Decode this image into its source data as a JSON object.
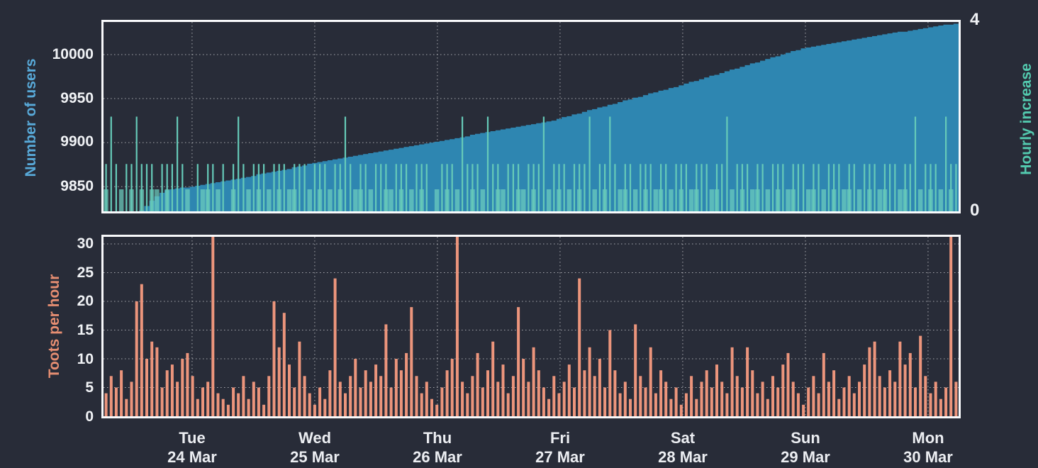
{
  "page": {
    "background": "#282c38",
    "border_color": "#f8f9fb",
    "grid_color": "rgba(255,255,255,0.6)"
  },
  "chart1": {
    "ylabel": "Number of users",
    "ylabel_color": "#58a9d8",
    "ylabel_right": "Hourly increase",
    "ylabel_right_color": "#53c9ae",
    "yticks": [
      "10000",
      "9950",
      "9900",
      "9850"
    ],
    "yticks_right": [
      "4",
      "0"
    ]
  },
  "chart2": {
    "ylabel": "Toots per hour",
    "ylabel_color": "#e68e72",
    "yticks": [
      "30",
      "25",
      "20",
      "15",
      "10",
      "5",
      "0"
    ]
  },
  "xaxis": {
    "days": [
      {
        "day": "Tue",
        "date": "24 Mar"
      },
      {
        "day": "Wed",
        "date": "25 Mar"
      },
      {
        "day": "Thu",
        "date": "26 Mar"
      },
      {
        "day": "Fri",
        "date": "27 Mar"
      },
      {
        "day": "Sat",
        "date": "28 Mar"
      },
      {
        "day": "Sun",
        "date": "29 Mar"
      },
      {
        "day": "Mon",
        "date": "30 Mar"
      }
    ]
  },
  "chart_data": [
    {
      "type": "area",
      "title": "Number of users with hourly increase",
      "ylabel": "Number of users",
      "ylabel_right": "Hourly increase",
      "ylim_left": [
        9822,
        10037
      ],
      "yticks_left": [
        9850,
        9900,
        9950,
        10000
      ],
      "ylim_right": [
        0,
        4
      ],
      "yticks_right": [
        0,
        4
      ],
      "hours_total": 168,
      "day_start_hours": [
        17.4,
        41.5,
        65.6,
        89.7,
        113.8,
        137.9,
        162.0
      ],
      "grid": true,
      "legend_position": "none",
      "series": [
        {
          "name": "users",
          "color": "#2e86b1",
          "values": [
            9820,
            9820,
            9821,
            9821,
            9821,
            9822,
            9822,
            9823,
            9828,
            9834,
            9839,
            9843,
            9846,
            9847,
            9848,
            9849,
            9849,
            9850,
            9851,
            9852,
            9853,
            9854,
            9855,
            9856,
            9857,
            9858,
            9859,
            9860,
            9861,
            9862,
            9864,
            9865,
            9866,
            9867,
            9868,
            9869,
            9870,
            9872,
            9873,
            9874,
            9876,
            9877,
            9878,
            9879,
            9880,
            9881,
            9882,
            9883,
            9884,
            9885,
            9886,
            9887,
            9888,
            9889,
            9890,
            9891,
            9892,
            9893,
            9894,
            9895,
            9896,
            9897,
            9898,
            9899,
            9900,
            9901,
            9902,
            9903,
            9904,
            9905,
            9906,
            9907,
            9909,
            9910,
            9911,
            9912,
            9913,
            9914,
            9915,
            9916,
            9917,
            9918,
            9919,
            9920,
            9921,
            9922,
            9923,
            9924,
            9925,
            9927,
            9929,
            9930,
            9932,
            9933,
            9935,
            9937,
            9938,
            9940,
            9941,
            9943,
            9944,
            9946,
            9948,
            9949,
            9951,
            9952,
            9954,
            9956,
            9957,
            9959,
            9960,
            9962,
            9963,
            9965,
            9967,
            9969,
            9970,
            9972,
            9974,
            9976,
            9977,
            9979,
            9981,
            9983,
            9984,
            9986,
            9988,
            9990,
            9991,
            9993,
            9995,
            9997,
            9998,
            10000,
            10002,
            10004,
            10005,
            10007,
            10008,
            10009,
            10010,
            10011,
            10012,
            10013,
            10014,
            10015,
            10016,
            10017,
            10018,
            10019,
            10020,
            10021,
            10022,
            10023,
            10024,
            10025,
            10026,
            10026,
            10027,
            10028,
            10029,
            10030,
            10031,
            10032,
            10033,
            10034,
            10034,
            10035,
            10036
          ]
        },
        {
          "name": "hourly_increase",
          "color": "#66cab8",
          "color_band": "rgba(109,206,191,0.72)",
          "values": [
            1.5,
            2,
            1,
            0.5,
            1,
            1.5,
            2,
            1.5,
            1,
            1.5,
            0.5,
            1,
            1.5,
            1,
            2,
            1,
            0.5,
            0,
            1,
            0.5,
            1.5,
            1,
            0.5,
            1,
            0,
            1.5,
            2,
            1,
            0.5,
            1,
            1.5,
            1,
            0.5,
            1,
            1.5,
            1,
            0.5,
            1.5,
            1,
            1,
            0.5,
            1,
            1.5,
            1,
            0.5,
            1,
            1.5,
            2,
            1,
            0.5,
            1.5,
            1,
            0.5,
            1,
            1,
            1.5,
            0.5,
            1,
            1.5,
            1,
            0.5,
            1,
            1.5,
            1,
            0,
            0.5,
            1,
            1.5,
            1,
            0.5,
            2,
            1,
            1.5,
            1,
            0.5,
            2,
            1,
            1.5,
            0.5,
            1,
            1,
            1.5,
            0.5,
            1,
            1.5,
            1,
            2,
            0.5,
            1,
            1.5,
            1,
            0.5,
            1,
            1.5,
            1,
            2,
            0.5,
            1,
            1.5,
            2,
            1,
            0.5,
            1.5,
            1,
            0.5,
            1,
            1.5,
            1,
            0.5,
            1.5,
            1,
            0.5,
            1,
            1.5,
            1,
            0.5,
            1.5,
            1,
            1,
            0.5,
            1.5,
            1,
            2,
            0.5,
            1,
            1.5,
            1,
            0.5,
            1.5,
            1,
            0.5,
            1,
            1.5,
            1,
            0.5,
            1.5,
            1,
            1,
            0.5,
            1.5,
            1,
            0.5,
            1,
            1.5,
            1,
            0.5,
            1.5,
            1,
            0.5,
            1,
            1.5,
            1,
            0.5,
            1.5,
            1,
            1,
            0.5,
            1.5,
            1,
            2,
            0.5,
            1,
            1.5,
            1,
            0.5,
            2,
            1.5,
            1
          ]
        }
      ]
    },
    {
      "type": "bar",
      "title": "Toots per hour",
      "ylabel": "Toots per hour",
      "ylim": [
        0,
        31.2
      ],
      "yticks": [
        0,
        5,
        10,
        15,
        20,
        25,
        30
      ],
      "hours_total": 168,
      "day_start_hours": [
        17.4,
        41.5,
        65.6,
        89.7,
        113.8,
        137.9,
        162.0
      ],
      "grid": true,
      "clipped_peak_value": 33,
      "series": [
        {
          "name": "toots_per_hour",
          "color": "#ec957c",
          "values": [
            4,
            7,
            5,
            8,
            3,
            6,
            20,
            23,
            10,
            13,
            12,
            5,
            8,
            9,
            6,
            10,
            11,
            7,
            3,
            5,
            6,
            33,
            4,
            3,
            2,
            5,
            4,
            7,
            3,
            6,
            5,
            2,
            7,
            20,
            12,
            18,
            9,
            5,
            13,
            7,
            4,
            2,
            5,
            3,
            8,
            24,
            6,
            4,
            7,
            10,
            5,
            8,
            6,
            9,
            7,
            16,
            5,
            10,
            8,
            11,
            19,
            7,
            4,
            6,
            3,
            2,
            5,
            8,
            10,
            33,
            6,
            4,
            7,
            11,
            5,
            8,
            13,
            6,
            9,
            4,
            7,
            19,
            10,
            6,
            12,
            8,
            5,
            3,
            7,
            4,
            6,
            9,
            5,
            24,
            8,
            12,
            7,
            10,
            5,
            15,
            8,
            4,
            6,
            3,
            16,
            7,
            5,
            12,
            4,
            8,
            6,
            3,
            5,
            2,
            4,
            7,
            3,
            6,
            8,
            5,
            9,
            6,
            4,
            12,
            7,
            5,
            12,
            8,
            4,
            6,
            3,
            7,
            5,
            9,
            11,
            6,
            4,
            2,
            5,
            7,
            4,
            11,
            6,
            8,
            3,
            5,
            7,
            4,
            6,
            9,
            12,
            13,
            7,
            5,
            8,
            6,
            13,
            9,
            11,
            5,
            14,
            7,
            4,
            6,
            3,
            5,
            33,
            6
          ]
        }
      ]
    }
  ]
}
